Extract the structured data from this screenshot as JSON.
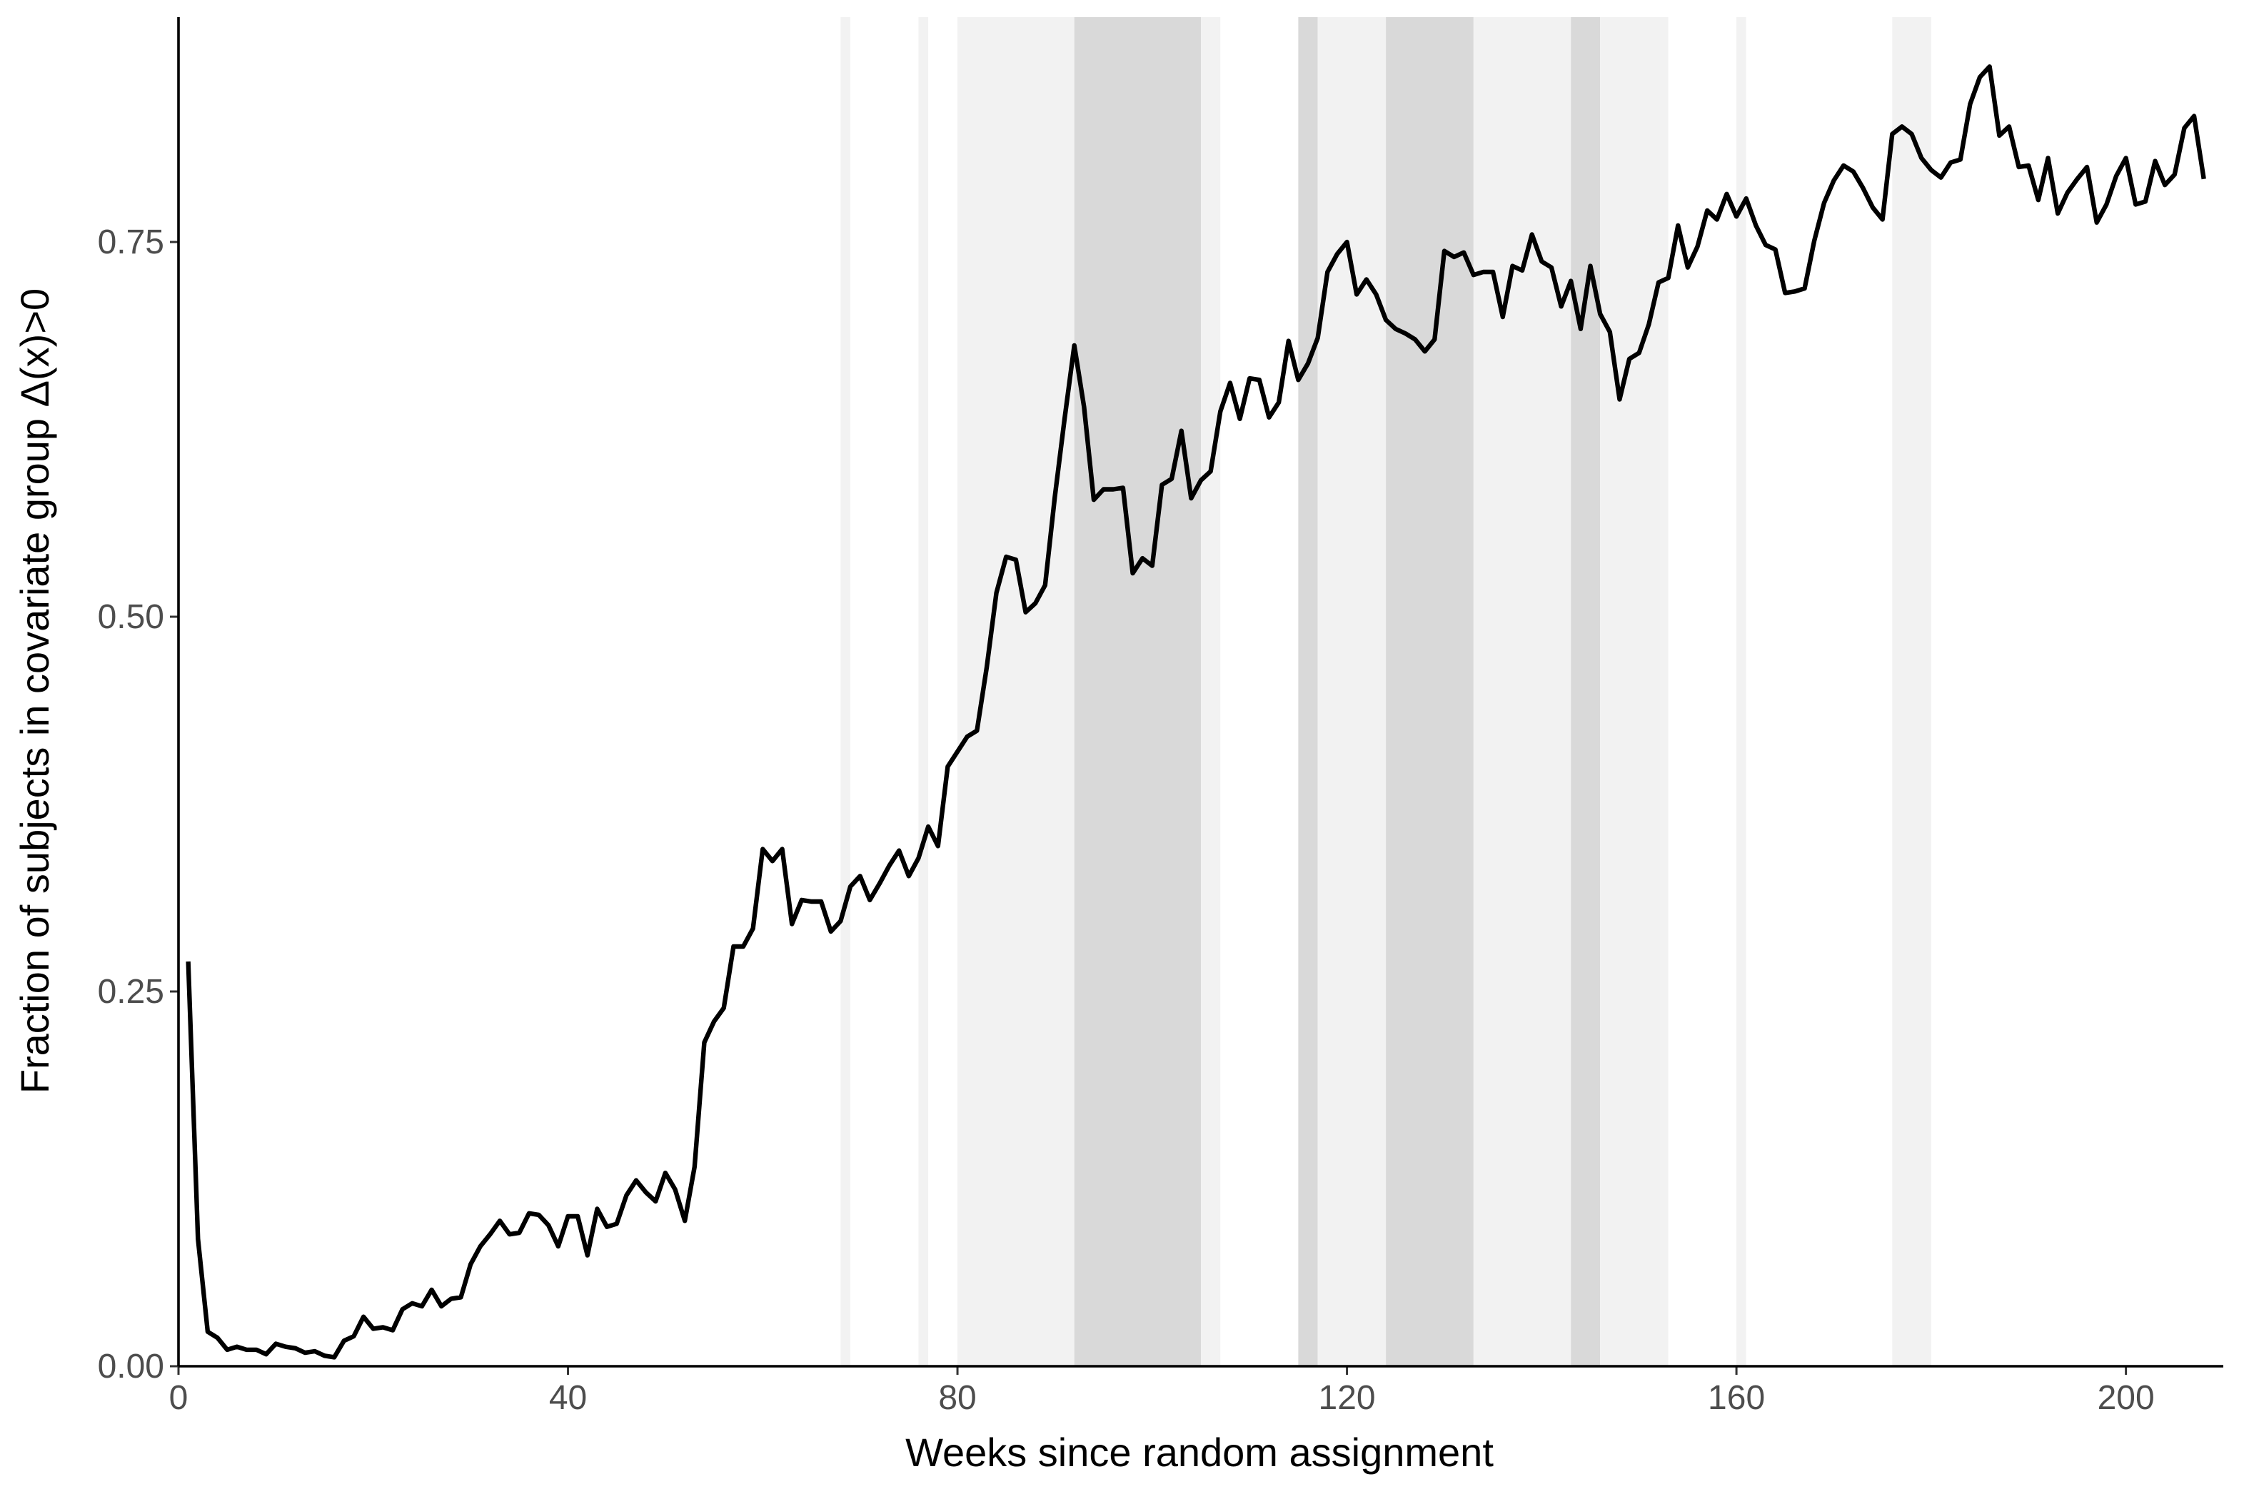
{
  "chart_data": {
    "type": "line",
    "xlabel": "Weeks since random assignment",
    "ylabel": "Fraction of subjects in covariate group Δ(x)>0",
    "x": [
      1,
      2,
      3,
      4,
      5,
      6,
      7,
      8,
      9,
      10,
      11,
      12,
      13,
      14,
      15,
      16,
      17,
      18,
      19,
      20,
      21,
      22,
      23,
      24,
      25,
      26,
      27,
      28,
      29,
      30,
      31,
      32,
      33,
      34,
      35,
      36,
      37,
      38,
      39,
      40,
      41,
      42,
      43,
      44,
      45,
      46,
      47,
      48,
      49,
      50,
      51,
      52,
      53,
      54,
      55,
      56,
      57,
      58,
      59,
      60,
      61,
      62,
      63,
      64,
      65,
      66,
      67,
      68,
      69,
      70,
      71,
      72,
      73,
      74,
      75,
      76,
      77,
      78,
      79,
      80,
      81,
      82,
      83,
      84,
      85,
      86,
      87,
      88,
      89,
      90,
      91,
      92,
      93,
      94,
      95,
      96,
      97,
      98,
      99,
      100,
      101,
      102,
      103,
      104,
      105,
      106,
      107,
      108,
      109,
      110,
      111,
      112,
      113,
      114,
      115,
      116,
      117,
      118,
      119,
      120,
      121,
      122,
      123,
      124,
      125,
      126,
      127,
      128,
      129,
      130,
      131,
      132,
      133,
      134,
      135,
      136,
      137,
      138,
      139,
      140,
      141,
      142,
      143,
      144,
      145,
      146,
      147,
      148,
      149,
      150,
      151,
      152,
      153,
      154,
      155,
      156,
      157,
      158,
      159,
      160,
      161,
      162,
      163,
      164,
      165,
      166,
      167,
      168,
      169,
      170,
      171,
      172,
      173,
      174,
      175,
      176,
      177,
      178,
      179,
      180,
      181,
      182,
      183,
      184,
      185,
      186,
      187,
      188,
      189,
      190,
      191,
      192,
      193,
      194,
      195,
      196,
      197,
      198,
      199,
      200,
      201,
      202,
      203,
      204,
      205,
      206,
      207,
      208
    ],
    "series": [
      {
        "color": "#000000",
        "values": [
          0.27,
          0.085,
          0.023,
          0.019,
          0.011,
          0.013,
          0.011,
          0.011,
          0.008,
          0.015,
          0.013,
          0.012,
          0.009,
          0.01,
          0.007,
          0.006,
          0.017,
          0.02,
          0.033,
          0.025,
          0.026,
          0.024,
          0.038,
          0.042,
          0.04,
          0.051,
          0.04,
          0.045,
          0.046,
          0.068,
          0.08,
          0.088,
          0.097,
          0.088,
          0.089,
          0.102,
          0.101,
          0.094,
          0.08,
          0.1,
          0.1,
          0.074,
          0.105,
          0.093,
          0.095,
          0.114,
          0.124,
          0.116,
          0.11,
          0.129,
          0.118,
          0.097,
          0.133,
          0.216,
          0.23,
          0.239,
          0.28,
          0.28,
          0.292,
          0.345,
          0.337,
          0.345,
          0.295,
          0.311,
          0.31,
          0.31,
          0.29,
          0.297,
          0.32,
          0.327,
          0.311,
          0.322,
          0.334,
          0.344,
          0.327,
          0.339,
          0.36,
          0.347,
          0.4,
          0.41,
          0.42,
          0.424,
          0.466,
          0.516,
          0.54,
          0.538,
          0.503,
          0.509,
          0.521,
          0.58,
          0.632,
          0.681,
          0.64,
          0.578,
          0.585,
          0.585,
          0.586,
          0.529,
          0.539,
          0.534,
          0.588,
          0.592,
          0.624,
          0.579,
          0.591,
          0.597,
          0.637,
          0.656,
          0.632,
          0.659,
          0.658,
          0.633,
          0.643,
          0.684,
          0.658,
          0.669,
          0.686,
          0.73,
          0.742,
          0.75,
          0.715,
          0.725,
          0.715,
          0.698,
          0.692,
          0.689,
          0.685,
          0.677,
          0.685,
          0.744,
          0.74,
          0.743,
          0.728,
          0.73,
          0.73,
          0.7,
          0.734,
          0.731,
          0.755,
          0.737,
          0.733,
          0.707,
          0.724,
          0.692,
          0.734,
          0.702,
          0.69,
          0.645,
          0.672,
          0.676,
          0.695,
          0.723,
          0.726,
          0.761,
          0.733,
          0.747,
          0.771,
          0.765,
          0.782,
          0.767,
          0.779,
          0.761,
          0.748,
          0.745,
          0.716,
          0.717,
          0.719,
          0.751,
          0.776,
          0.791,
          0.801,
          0.797,
          0.786,
          0.773,
          0.765,
          0.822,
          0.827,
          0.822,
          0.806,
          0.798,
          0.793,
          0.803,
          0.805,
          0.842,
          0.86,
          0.867,
          0.821,
          0.827,
          0.8,
          0.801,
          0.778,
          0.806,
          0.769,
          0.783,
          0.792,
          0.8,
          0.763,
          0.775,
          0.794,
          0.806,
          0.775,
          0.777,
          0.804,
          0.788,
          0.795,
          0.826,
          0.834,
          0.792
        ]
      }
    ],
    "bands": [
      {
        "x": [
          68,
          69
        ],
        "color": "#f2f2f2"
      },
      {
        "x": [
          76,
          77
        ],
        "color": "#f2f2f2"
      },
      {
        "x": [
          80,
          92
        ],
        "color": "#f2f2f2"
      },
      {
        "x": [
          92,
          105
        ],
        "color": "#d9d9d9"
      },
      {
        "x": [
          105,
          107
        ],
        "color": "#f2f2f2"
      },
      {
        "x": [
          115,
          117
        ],
        "color": "#d9d9d9"
      },
      {
        "x": [
          117,
          124
        ],
        "color": "#f2f2f2"
      },
      {
        "x": [
          124,
          133
        ],
        "color": "#d9d9d9"
      },
      {
        "x": [
          133,
          143
        ],
        "color": "#f2f2f2"
      },
      {
        "x": [
          143,
          146
        ],
        "color": "#d9d9d9"
      },
      {
        "x": [
          146,
          153
        ],
        "color": "#f2f2f2"
      },
      {
        "x": [
          160,
          161
        ],
        "color": "#f2f2f2"
      },
      {
        "x": [
          176,
          180
        ],
        "color": "#f2f2f2"
      }
    ],
    "xlim": [
      0,
      210
    ],
    "xticks": [
      0,
      40,
      80,
      120,
      160,
      200
    ],
    "ylim": [
      0,
      0.9
    ],
    "yticks": [
      {
        "value": 0,
        "label": "0.00"
      },
      {
        "value": 0.25,
        "label": "0.25"
      },
      {
        "value": 0.5,
        "label": "0.50"
      },
      {
        "value": 0.75,
        "label": "0.75"
      }
    ]
  }
}
